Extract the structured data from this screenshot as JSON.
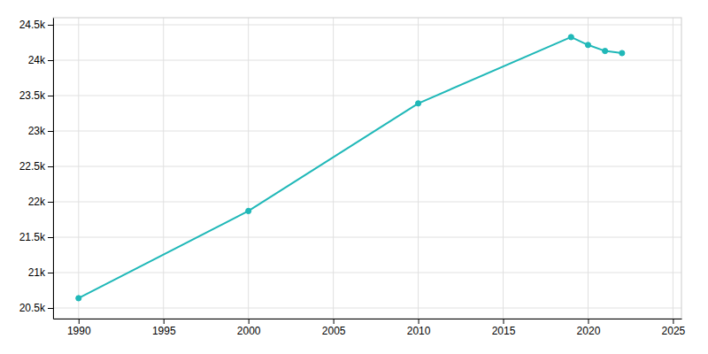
{
  "chart_data": {
    "type": "line",
    "x": [
      1990,
      2000,
      2010,
      2019,
      2020,
      2021,
      2022
    ],
    "values": [
      20638,
      21870,
      23390,
      24326,
      24215,
      24130,
      24100
    ],
    "color": "#20b8b8",
    "marker": "circle",
    "xlim": [
      1988.5,
      2025.5
    ],
    "ylim": [
      20350,
      24600
    ],
    "xticks": [
      1990,
      1995,
      2000,
      2005,
      2010,
      2015,
      2020,
      2025
    ],
    "yticks": [
      {
        "value": 20500,
        "label": "20.5k"
      },
      {
        "value": 21000,
        "label": "21k"
      },
      {
        "value": 21500,
        "label": "21.5k"
      },
      {
        "value": 22000,
        "label": "22k"
      },
      {
        "value": 22500,
        "label": "22.5k"
      },
      {
        "value": 23000,
        "label": "23k"
      },
      {
        "value": 23500,
        "label": "23.5k"
      },
      {
        "value": 24000,
        "label": "24k"
      },
      {
        "value": 24500,
        "label": "24.5k"
      }
    ],
    "grid": true
  }
}
